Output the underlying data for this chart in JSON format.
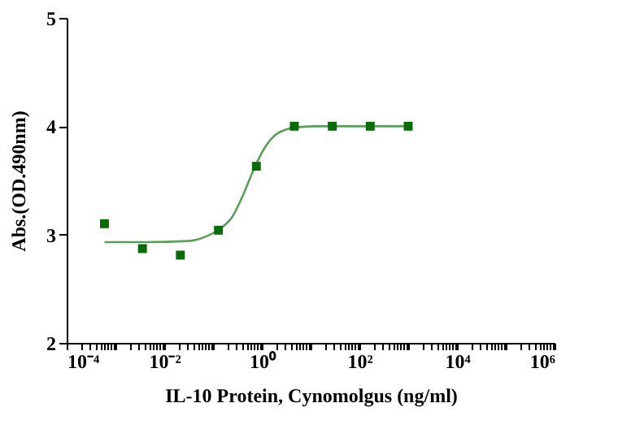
{
  "chart_data": {
    "type": "scatter",
    "xlabel": "IL-10 Protein, Cynomolgus   (ng/ml)",
    "ylabel": "Abs.(OD.490nm)",
    "log": "x",
    "grid": false,
    "legend": false,
    "xlim": [
      0.0001,
      1000000
    ],
    "ylim": [
      2,
      5
    ],
    "yticks": [
      2,
      3,
      4,
      5
    ],
    "xticks": [
      {
        "value": 0.0001,
        "label": "10⁻⁴"
      },
      {
        "value": 0.01,
        "label": "10⁻²"
      },
      {
        "value": 1,
        "label": "10⁰"
      },
      {
        "value": 100,
        "label": "10²"
      },
      {
        "value": 10000,
        "label": "10⁴"
      },
      {
        "value": 1000000,
        "label": "10⁶"
      },
      {
        "value": 0.0002,
        "label": null
      },
      {
        "value": 0.0003,
        "label": null
      },
      {
        "value": 0.0004,
        "label": null
      },
      {
        "value": 0.0005,
        "label": null
      },
      {
        "value": 0.0006,
        "label": null
      },
      {
        "value": 0.0007,
        "label": null
      },
      {
        "value": 0.0008,
        "label": null
      },
      {
        "value": 0.0009,
        "label": null
      },
      {
        "value": 0.001,
        "label": null
      },
      {
        "value": 0.002,
        "label": null
      },
      {
        "value": 0.003,
        "label": null
      },
      {
        "value": 0.004,
        "label": null
      },
      {
        "value": 0.005,
        "label": null
      },
      {
        "value": 0.006,
        "label": null
      },
      {
        "value": 0.007,
        "label": null
      },
      {
        "value": 0.008,
        "label": null
      },
      {
        "value": 0.009,
        "label": null
      },
      {
        "value": 0.02,
        "label": null
      },
      {
        "value": 0.03,
        "label": null
      },
      {
        "value": 0.04,
        "label": null
      },
      {
        "value": 0.05,
        "label": null
      },
      {
        "value": 0.06,
        "label": null
      },
      {
        "value": 0.07,
        "label": null
      },
      {
        "value": 0.08,
        "label": null
      },
      {
        "value": 0.09,
        "label": null
      },
      {
        "value": 0.1,
        "label": null
      },
      {
        "value": 0.2,
        "label": null
      },
      {
        "value": 0.3,
        "label": null
      },
      {
        "value": 0.4,
        "label": null
      },
      {
        "value": 0.5,
        "label": null
      },
      {
        "value": 0.6,
        "label": null
      },
      {
        "value": 0.7,
        "label": null
      },
      {
        "value": 0.8,
        "label": null
      },
      {
        "value": 0.9,
        "label": null
      },
      {
        "value": 2,
        "label": null
      },
      {
        "value": 3,
        "label": null
      },
      {
        "value": 4,
        "label": null
      },
      {
        "value": 5,
        "label": null
      },
      {
        "value": 6,
        "label": null
      },
      {
        "value": 7,
        "label": null
      },
      {
        "value": 8,
        "label": null
      },
      {
        "value": 9,
        "label": null
      },
      {
        "value": 10,
        "label": null
      },
      {
        "value": 20,
        "label": null
      },
      {
        "value": 30,
        "label": null
      },
      {
        "value": 40,
        "label": null
      },
      {
        "value": 50,
        "label": null
      },
      {
        "value": 60,
        "label": null
      },
      {
        "value": 70,
        "label": null
      },
      {
        "value": 80,
        "label": null
      },
      {
        "value": 90,
        "label": null
      },
      {
        "value": 200,
        "label": null
      },
      {
        "value": 300,
        "label": null
      },
      {
        "value": 400,
        "label": null
      },
      {
        "value": 500,
        "label": null
      },
      {
        "value": 600,
        "label": null
      },
      {
        "value": 700,
        "label": null
      },
      {
        "value": 800,
        "label": null
      },
      {
        "value": 900,
        "label": null
      },
      {
        "value": 1000,
        "label": null
      },
      {
        "value": 2000,
        "label": null
      },
      {
        "value": 3000,
        "label": null
      },
      {
        "value": 4000,
        "label": null
      },
      {
        "value": 5000,
        "label": null
      },
      {
        "value": 6000,
        "label": null
      },
      {
        "value": 7000,
        "label": null
      },
      {
        "value": 8000,
        "label": null
      },
      {
        "value": 9000,
        "label": null
      },
      {
        "value": 20000,
        "label": null
      },
      {
        "value": 30000,
        "label": null
      },
      {
        "value": 40000,
        "label": null
      },
      {
        "value": 50000,
        "label": null
      },
      {
        "value": 60000,
        "label": null
      },
      {
        "value": 70000,
        "label": null
      },
      {
        "value": 80000,
        "label": null
      },
      {
        "value": 90000,
        "label": null
      },
      {
        "value": 100000,
        "label": null
      },
      {
        "value": 200000,
        "label": null
      },
      {
        "value": 300000,
        "label": null
      },
      {
        "value": 400000,
        "label": null
      },
      {
        "value": 500000,
        "label": null
      },
      {
        "value": 600000,
        "label": null
      },
      {
        "value": 700000,
        "label": null
      },
      {
        "value": 800000,
        "label": null
      },
      {
        "value": 900000,
        "label": null
      }
    ],
    "series": [
      {
        "type": "line",
        "color": "#5a9e5a",
        "marker": "none",
        "line_style": "solid",
        "x": [
          0.000595,
          0.00408,
          0.0316,
          0.0527,
          0.088,
          0.147,
          0.245,
          0.408,
          0.681,
          1.14,
          1.9,
          3.16,
          5.27,
          14.7,
          114,
          1000
        ],
        "values": [
          2.93,
          2.93,
          2.94,
          2.96,
          3.0,
          3.06,
          3.16,
          3.36,
          3.6,
          3.8,
          3.92,
          3.97,
          3.99,
          4.0,
          4.0,
          4.0
        ]
      },
      {
        "color": "#0b6b0b",
        "marker": "square",
        "x": [
          0.000595,
          0.00357,
          0.0214,
          0.129,
          0.772,
          4.63,
          27.8,
          166.7,
          1000
        ],
        "values": [
          3.1,
          2.87,
          2.81,
          3.04,
          3.63,
          4.0,
          4.0,
          4.0,
          4.0
        ]
      }
    ]
  }
}
